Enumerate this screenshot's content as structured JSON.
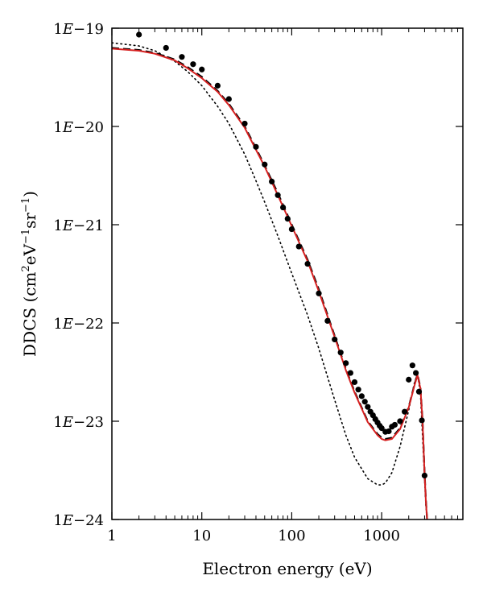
{
  "chart_data": {
    "type": "scatter",
    "xlabel": "Electron energy (eV)",
    "ylabel": {
      "base": "DDCS (cm",
      "sup1": "2",
      "mid1": "eV",
      "sup2": "−1",
      "mid2": "sr",
      "sup3": "−1",
      "end": ")"
    },
    "xscale": "log",
    "yscale": "log",
    "xlim": [
      1,
      8000
    ],
    "ylim": [
      1e-24,
      1e-19
    ],
    "x_ticks": [
      {
        "value": 1,
        "label": "1"
      },
      {
        "value": 10,
        "label": "10"
      },
      {
        "value": 100,
        "label": "100"
      },
      {
        "value": 1000,
        "label": "1000"
      }
    ],
    "y_ticks": [
      {
        "value": 1e-19,
        "label": "1E−19"
      },
      {
        "value": 1e-20,
        "label": "1E−20"
      },
      {
        "value": 1e-21,
        "label": "1E−21"
      },
      {
        "value": 1e-22,
        "label": "1E−22"
      },
      {
        "value": 1e-23,
        "label": "1E−23"
      },
      {
        "value": 1e-24,
        "label": "1E−24"
      }
    ],
    "grid": false,
    "legend": "none",
    "series": [
      {
        "style": "points",
        "color": "#000000",
        "x": [
          2,
          4,
          6,
          8,
          10,
          15,
          20,
          30,
          40,
          50,
          60,
          70,
          80,
          90,
          100,
          120,
          150,
          200,
          250,
          300,
          350,
          400,
          450,
          500,
          550,
          600,
          650,
          700,
          750,
          800,
          850,
          900,
          950,
          1000,
          1100,
          1200,
          1300,
          1400,
          1600,
          1800,
          2000,
          2200,
          2400,
          2600,
          2800,
          3000
        ],
        "y": [
          8.6e-20,
          6.3e-20,
          5.1e-20,
          4.3e-20,
          3.8e-20,
          2.6e-20,
          1.9e-20,
          1.07e-20,
          6.2e-21,
          4.1e-21,
          2.75e-21,
          2e-21,
          1.5e-21,
          1.15e-21,
          9e-22,
          6e-22,
          4e-22,
          2e-22,
          1.05e-22,
          6.8e-23,
          5e-23,
          3.9e-23,
          3.1e-23,
          2.5e-23,
          2.1e-23,
          1.8e-23,
          1.58e-23,
          1.4e-23,
          1.25e-23,
          1.15e-23,
          1.05e-23,
          9.7e-24,
          9e-24,
          8.5e-24,
          7.8e-24,
          7.9e-24,
          8.8e-24,
          9.2e-24,
          1e-23,
          1.25e-23,
          2.65e-23,
          3.7e-23,
          3.1e-23,
          2e-23,
          1.02e-23,
          2.8e-24
        ]
      },
      {
        "style": "dashed",
        "color": "#000000",
        "x": [
          1,
          2,
          3,
          5,
          7,
          10,
          15,
          20,
          30,
          40,
          50,
          70,
          100,
          150,
          200,
          300,
          400,
          500,
          700,
          900,
          1000,
          1100,
          1300,
          1600,
          2000,
          2300,
          2500,
          2700,
          2850,
          3000,
          3100,
          3200
        ],
        "y": [
          6.3e-20,
          6e-20,
          5.6e-20,
          4.8e-20,
          4e-20,
          3.2e-20,
          2.3e-20,
          1.7e-20,
          1e-20,
          6e-21,
          4e-21,
          2.1e-21,
          1e-21,
          4.4e-22,
          2.2e-22,
          7.4e-23,
          3.4e-23,
          2e-23,
          1e-23,
          7.4e-24,
          6.8e-24,
          6.6e-24,
          6.8e-24,
          8.5e-24,
          1.4e-23,
          2.3e-23,
          3e-23,
          2.2e-23,
          1e-23,
          3e-24,
          1.6e-24,
          1e-24
        ]
      },
      {
        "style": "solid",
        "color": "#d62020",
        "x": [
          1,
          2,
          3,
          5,
          7,
          10,
          15,
          20,
          30,
          40,
          50,
          70,
          100,
          150,
          200,
          300,
          400,
          500,
          700,
          900,
          1000,
          1100,
          1300,
          1600,
          2000,
          2300,
          2500,
          2700,
          2850,
          3000,
          3100,
          3200
        ],
        "y": [
          6.2e-20,
          5.9e-20,
          5.5e-20,
          4.7e-20,
          3.9e-20,
          3.1e-20,
          2.25e-20,
          1.65e-20,
          9.7e-21,
          5.8e-21,
          3.9e-21,
          2e-21,
          9.7e-22,
          4.25e-22,
          2.1e-22,
          7.2e-23,
          3.3e-23,
          1.95e-23,
          9.8e-24,
          7.2e-24,
          6.6e-24,
          6.4e-24,
          6.6e-24,
          8.3e-24,
          1.38e-23,
          2.25e-23,
          2.95e-23,
          2.15e-23,
          9.8e-24,
          2.9e-24,
          1.55e-24,
          1e-24
        ]
      },
      {
        "style": "dotted",
        "color": "#000000",
        "x": [
          1,
          2,
          3,
          5,
          7,
          10,
          15,
          20,
          30,
          40,
          50,
          70,
          100,
          150,
          200,
          300,
          400,
          500,
          700,
          900,
          1000,
          1100,
          1300,
          1600,
          2000,
          2300,
          2500,
          2700,
          2900,
          3100,
          3200
        ],
        "y": [
          7.1e-20,
          6.6e-20,
          5.9e-20,
          4.6e-20,
          3.6e-20,
          2.6e-20,
          1.6e-20,
          1.07e-20,
          5.2e-21,
          2.8e-21,
          1.7e-21,
          7.7e-22,
          3.2e-22,
          1.2e-22,
          5.5e-23,
          1.65e-23,
          7.2e-24,
          4.3e-24,
          2.6e-24,
          2.25e-24,
          2.25e-24,
          2.35e-24,
          3e-24,
          5.5e-24,
          1.3e-23,
          2.4e-23,
          3.05e-23,
          1.9e-23,
          5e-24,
          1.4e-24,
          1e-24
        ]
      }
    ]
  }
}
